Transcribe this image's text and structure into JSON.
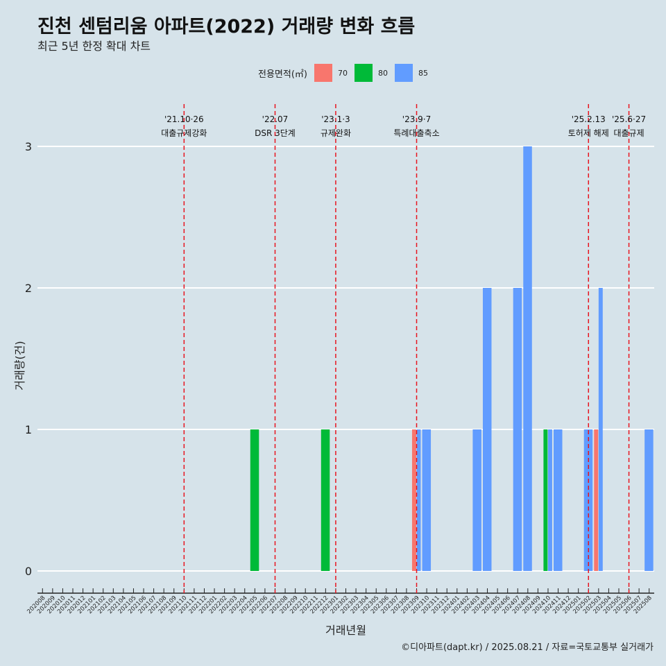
{
  "title": "진천 센텀리움 아파트(2022) 거래량 변화 흐름",
  "subtitle": "최근 5년 한정 확대 차트",
  "caption": "©디아파트(dapt.kr) / 2025.08.21 / 자료=국토교통부 실거래가",
  "legend": {
    "title": "전용면적(㎡)",
    "items": [
      {
        "label": "70",
        "color": "#f8766d"
      },
      {
        "label": "80",
        "color": "#00ba38"
      },
      {
        "label": "85",
        "color": "#619cff"
      }
    ]
  },
  "chart_data": {
    "type": "bar",
    "stacking": "dodge",
    "title": "진천 센텀리움 아파트(2022) 거래량 변화 흐름",
    "xlabel": "거래년월",
    "ylabel": "거래량(건)",
    "ylim": [
      0,
      3
    ],
    "yticks": [
      0,
      1,
      2,
      3
    ],
    "categories": [
      "202008",
      "202009",
      "202010",
      "202011",
      "202012",
      "202101",
      "202102",
      "202103",
      "202104",
      "202105",
      "202106",
      "202107",
      "202108",
      "202109",
      "202110",
      "202111",
      "202112",
      "202201",
      "202202",
      "202203",
      "202204",
      "202205",
      "202206",
      "202207",
      "202208",
      "202209",
      "202210",
      "202211",
      "202212",
      "202301",
      "202302",
      "202303",
      "202304",
      "202305",
      "202306",
      "202307",
      "202308",
      "202309",
      "202310",
      "202311",
      "202312",
      "202401",
      "202402",
      "202403",
      "202404",
      "202405",
      "202406",
      "202407",
      "202408",
      "202409",
      "202410",
      "202411",
      "202412",
      "202501",
      "202502",
      "202503",
      "202504",
      "202505",
      "202506",
      "202507",
      "202508"
    ],
    "bars": [
      {
        "month": "202205",
        "area": "80",
        "value": 1
      },
      {
        "month": "202212",
        "area": "80",
        "value": 1
      },
      {
        "month": "202309",
        "area": "85",
        "value": 1
      },
      {
        "month": "202309",
        "area": "70",
        "value": 1
      },
      {
        "month": "202310",
        "area": "85",
        "value": 1
      },
      {
        "month": "202403",
        "area": "85",
        "value": 1
      },
      {
        "month": "202404",
        "area": "85",
        "value": 2
      },
      {
        "month": "202407",
        "area": "85",
        "value": 2
      },
      {
        "month": "202408",
        "area": "85",
        "value": 3
      },
      {
        "month": "202410",
        "area": "80",
        "value": 1
      },
      {
        "month": "202410",
        "area": "85",
        "value": 1
      },
      {
        "month": "202411",
        "area": "85",
        "value": 1
      },
      {
        "month": "202502",
        "area": "85",
        "value": 1
      },
      {
        "month": "202503",
        "area": "70",
        "value": 1
      },
      {
        "month": "202503",
        "area": "85",
        "value": 2
      },
      {
        "month": "202508",
        "area": "85",
        "value": 1
      }
    ],
    "events": [
      {
        "month": "202110",
        "date": "'21.10·26",
        "label": "대출규제강화"
      },
      {
        "month": "202207",
        "date": "'22.07",
        "label": "DSR 3단계"
      },
      {
        "month": "202301",
        "date": "'23.1·3",
        "label": "규제완화"
      },
      {
        "month": "202309",
        "date": "'23.9·7",
        "label": "특례대출축소"
      },
      {
        "month": "202502",
        "date": "'25.2.13",
        "label": "토허제 해제"
      },
      {
        "month": "202506",
        "date": "'25.6·27",
        "label": "대출규제"
      }
    ]
  }
}
